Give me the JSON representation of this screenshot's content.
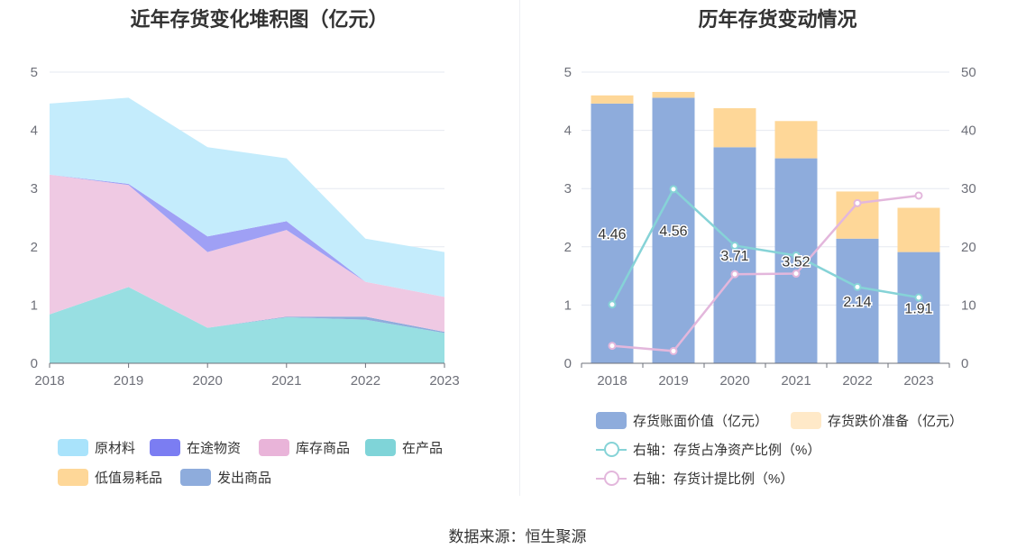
{
  "source_label": "数据来源：恒生聚源",
  "chart_data": [
    {
      "type": "area",
      "stacked": true,
      "title": "近年存货变化堆积图（亿元）",
      "categories": [
        "2018",
        "2019",
        "2020",
        "2021",
        "2022",
        "2023"
      ],
      "ylim": [
        0,
        5
      ],
      "yticks": [
        0,
        1,
        2,
        3,
        4,
        5
      ],
      "grid": true,
      "legend_position": "bottom",
      "series": [
        {
          "name": "在产品",
          "values": [
            0.84,
            1.31,
            0.61,
            0.79,
            0.75,
            0.52
          ],
          "color": "#98dfe2"
        },
        {
          "name": "发出商品",
          "values": [
            0.0,
            0.0,
            0.0,
            0.01,
            0.05,
            0.02
          ],
          "color": "#8eacdc"
        },
        {
          "name": "库存商品",
          "values": [
            2.4,
            1.75,
            1.3,
            1.49,
            0.6,
            0.6
          ],
          "color": "#efc9e3"
        },
        {
          "name": "在途物资",
          "values": [
            0.0,
            0.02,
            0.27,
            0.15,
            0.0,
            0.0
          ],
          "color": "#9fa0f5"
        },
        {
          "name": "低值易耗品",
          "values": [
            0.0,
            0.0,
            0.0,
            0.0,
            0.0,
            0.0
          ],
          "color": "#fed798"
        },
        {
          "name": "原材料",
          "values": [
            1.22,
            1.48,
            1.53,
            1.08,
            0.74,
            0.77
          ],
          "color": "#c4ecfc"
        }
      ],
      "legend": [
        {
          "name": "原材料",
          "color": "#a9e3fb"
        },
        {
          "name": "在途物资",
          "color": "#7b7df2"
        },
        {
          "name": "库存商品",
          "color": "#e9b4d9"
        },
        {
          "name": "在产品",
          "color": "#7fd4d8"
        },
        {
          "name": "低值易耗品",
          "color": "#fed798"
        },
        {
          "name": "发出商品",
          "color": "#8eacdc"
        }
      ]
    },
    {
      "type": "bar",
      "stacked": true,
      "title": "历年存货变动情况",
      "categories": [
        "2018",
        "2019",
        "2020",
        "2021",
        "2022",
        "2023"
      ],
      "ylim": [
        0,
        5
      ],
      "yticks": [
        0,
        1,
        2,
        3,
        4,
        5
      ],
      "y2lim": [
        0,
        50
      ],
      "y2ticks": [
        0,
        10,
        20,
        30,
        40,
        50
      ],
      "grid": true,
      "legend_position": "bottom",
      "series": [
        {
          "name": "存货账面价值（亿元）",
          "values": [
            4.46,
            4.56,
            3.71,
            3.52,
            2.14,
            1.91
          ],
          "labels": [
            "4.46",
            "4.56",
            "3.71",
            "3.52",
            "2.14",
            "1.91"
          ],
          "color": "#8eacdc"
        },
        {
          "name": "存货跌价准备（亿元）",
          "values": [
            0.14,
            0.1,
            0.67,
            0.64,
            0.81,
            0.76
          ],
          "color": "#fed798",
          "legend_color": "#ffe9c8"
        }
      ],
      "line_series": [
        {
          "name": "右轴：存货占净资产比例（%）",
          "axis": "right",
          "values": [
            10.1,
            29.9,
            20.2,
            18.5,
            13.1,
            11.3
          ],
          "color": "#86d3d7"
        },
        {
          "name": "右轴：存货计提比例（%）",
          "axis": "right",
          "values": [
            3.0,
            2.1,
            15.3,
            15.4,
            27.5,
            28.8
          ],
          "color": "#e3b7dc"
        }
      ]
    }
  ]
}
